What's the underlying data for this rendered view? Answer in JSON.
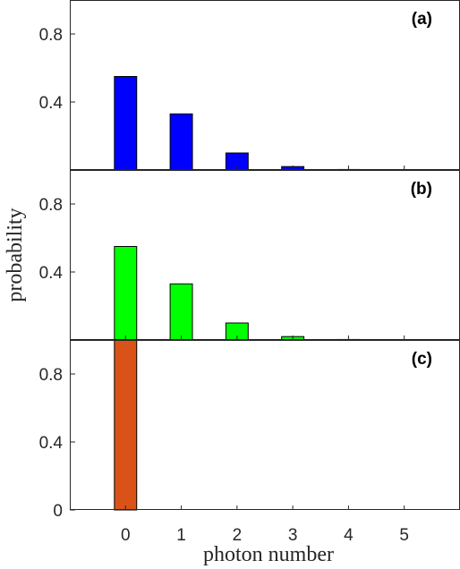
{
  "chart_data": {
    "type": "bar",
    "xlabel": "photon number",
    "ylabel": "probability",
    "categories": [
      "0",
      "1",
      "2",
      "3",
      "4",
      "5"
    ],
    "x_ticks": [
      "0",
      "1",
      "2",
      "3",
      "4",
      "5"
    ],
    "xlim": [
      -1,
      6
    ],
    "panels": [
      {
        "label": "(a)",
        "color": "#0000ff",
        "values": [
          0.55,
          0.33,
          0.1,
          0.02,
          0.003,
          0.0005
        ],
        "ylim": [
          0,
          1.0
        ],
        "y_ticks": [
          "0.4",
          "0.8"
        ]
      },
      {
        "label": "(b)",
        "color": "#00ff00",
        "values": [
          0.55,
          0.33,
          0.1,
          0.02,
          0.003,
          0.0005
        ],
        "ylim": [
          0,
          1.0
        ],
        "y_ticks": [
          "0.4",
          "0.8"
        ]
      },
      {
        "label": "(c)",
        "color": "#d95319",
        "values": [
          1.0,
          0,
          0,
          0,
          0,
          0
        ],
        "ylim": [
          0,
          1.0
        ],
        "y_ticks": [
          "0",
          "0.4",
          "0.8"
        ]
      }
    ]
  }
}
